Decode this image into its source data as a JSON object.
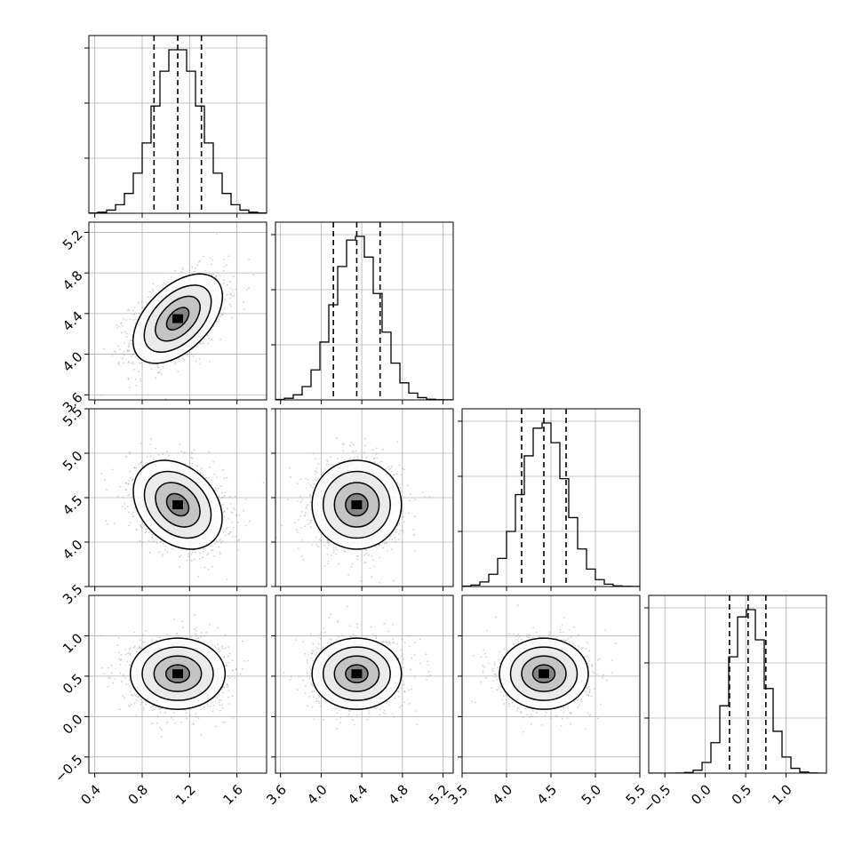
{
  "chart_data": {
    "type": "corner",
    "n_params": 4,
    "params": [
      {
        "id": "p0",
        "median": 1.1,
        "sigma": 0.2,
        "quantiles": [
          0.9,
          1.1,
          1.3
        ],
        "range": [
          0.35,
          1.85
        ],
        "ticks": [
          0.4,
          0.8,
          1.2,
          1.6
        ],
        "tick_labels": [
          "0.4",
          "0.8",
          "1.2",
          "1.6"
        ]
      },
      {
        "id": "p1",
        "median": 4.35,
        "sigma": 0.22,
        "quantiles": [
          4.12,
          4.35,
          4.58
        ],
        "range": [
          3.55,
          5.3
        ],
        "ticks": [
          3.6,
          4.0,
          4.4,
          4.8,
          5.2
        ],
        "tick_labels": [
          "3.6",
          "4.0",
          "4.4",
          "4.8",
          "5.2"
        ]
      },
      {
        "id": "p2",
        "median": 4.42,
        "sigma": 0.25,
        "quantiles": [
          4.17,
          4.42,
          4.67
        ],
        "range": [
          3.5,
          5.5
        ],
        "ticks": [
          3.5,
          4.0,
          4.5,
          5.0,
          5.5
        ],
        "tick_labels": [
          "3.5",
          "4.0",
          "4.5",
          "5.0",
          "5.5"
        ]
      },
      {
        "id": "p3",
        "median": 0.53,
        "sigma": 0.22,
        "quantiles": [
          0.3,
          0.53,
          0.75
        ],
        "range": [
          -0.7,
          1.5
        ],
        "ticks": [
          -0.5,
          0.0,
          0.5,
          1.0
        ],
        "tick_labels": [
          "−0.5",
          "0.0",
          "0.5",
          "1.0"
        ]
      }
    ],
    "correlations": {
      "p0-p1": 0.5,
      "p0-p2": -0.3,
      "p1-p2": 0.0,
      "p0-p3": 0.0,
      "p1-p3": 0.0,
      "p2-p3": 0.0
    },
    "histogram_bins": 20,
    "contour_levels_sigma": [
      0.5,
      1.0,
      1.5,
      2.0
    ],
    "grid": true
  }
}
